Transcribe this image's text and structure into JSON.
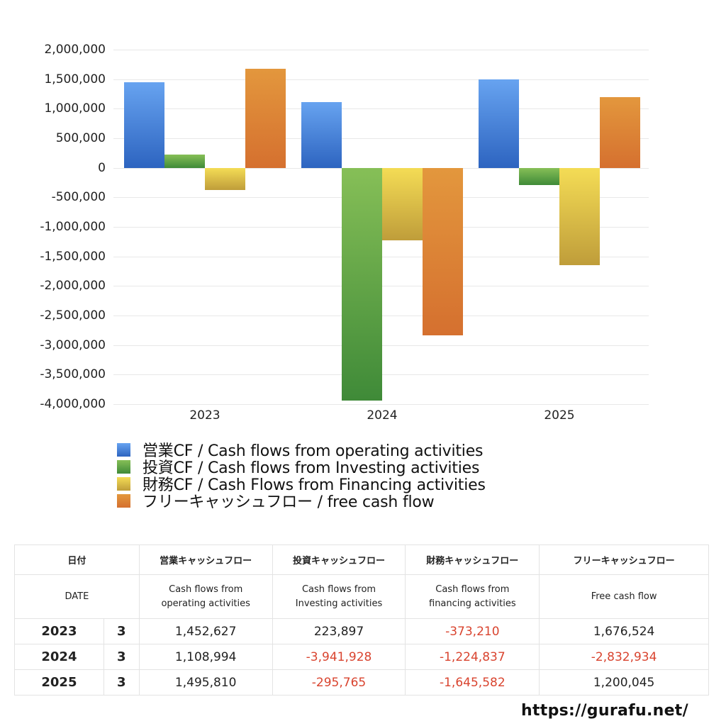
{
  "chart_data": {
    "type": "bar",
    "title": "",
    "xlabel": "",
    "ylabel": "",
    "categories": [
      "2023",
      "2024",
      "2025"
    ],
    "series": [
      {
        "name": "営業CF / Cash flows from operating activities",
        "color": "#4a85db",
        "values": [
          1452627,
          1108994,
          1495810
        ]
      },
      {
        "name": "投資CF / Cash flows from Investing activities",
        "color": "#5aa146",
        "values": [
          223897,
          -3941928,
          -295765
        ]
      },
      {
        "name": "財務CF / Cash Flows from Financing activities",
        "color": "#e0c44a",
        "values": [
          -373210,
          -1224837,
          -1645582
        ]
      },
      {
        "name": "フリーキャッシュフロー / free cash flow",
        "color": "#dc8236",
        "values": [
          1676524,
          -2832934,
          1200045
        ]
      }
    ],
    "ylim": [
      -4000000,
      2000000
    ],
    "yticks": [
      "2,000,000",
      "1,500,000",
      "1,000,000",
      "500,000",
      "0",
      "-500,000",
      "-1,000,000",
      "-1,500,000",
      "-2,000,000",
      "-2,500,000",
      "-3,000,000",
      "-3,500,000",
      "-4,000,000"
    ],
    "grid": true,
    "legend_position": "bottom"
  },
  "table": {
    "header_jp": {
      "date": "日付",
      "operating": "営業キャッシュフロー",
      "investing": "投資キャッシュフロー",
      "financing": "財務キャッシュフロー",
      "free": "フリーキャッシュフロー"
    },
    "header_en": {
      "date": "DATE",
      "operating_1": "Cash flows from",
      "operating_2": "operating activities",
      "investing_1": "Cash flows from",
      "investing_2": "Investing activities",
      "financing_1": "Cash flows from",
      "financing_2": "financing activities",
      "free": "Free cash flow"
    },
    "rows": [
      {
        "year": "2023",
        "month": "3",
        "operating": "1,452,627",
        "investing": "223,897",
        "financing": "-373,210",
        "free": "1,676,524"
      },
      {
        "year": "2024",
        "month": "3",
        "operating": "1,108,994",
        "investing": "-3,941,928",
        "financing": "-1,224,837",
        "free": "-2,832,934"
      },
      {
        "year": "2025",
        "month": "3",
        "operating": "1,495,810",
        "investing": "-295,765",
        "financing": "-1,645,582",
        "free": "1,200,045"
      }
    ]
  },
  "footer": {
    "url": "https://gurafu.net/"
  },
  "colors": {
    "negative": "#d9442f"
  }
}
